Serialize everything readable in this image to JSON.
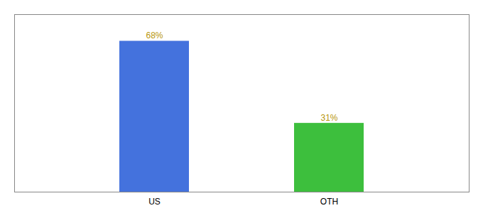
{
  "chart_data": {
    "type": "bar",
    "categories": [
      "US",
      "OTH"
    ],
    "values": [
      68,
      31
    ],
    "value_labels": [
      "68%",
      "31%"
    ],
    "colors": [
      "#4472DD",
      "#3DBF3D"
    ],
    "ylim": [
      0,
      80
    ],
    "data_labels": true,
    "tick_labels": "x"
  }
}
